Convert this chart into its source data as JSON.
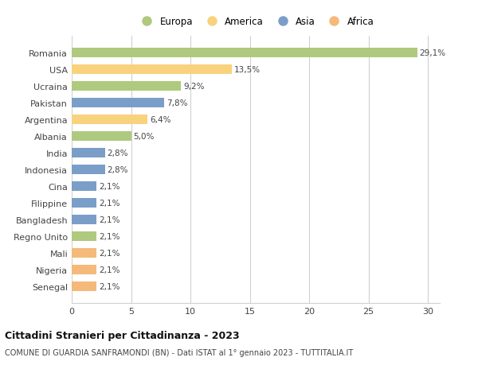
{
  "categories": [
    "Romania",
    "USA",
    "Ucraina",
    "Pakistan",
    "Argentina",
    "Albania",
    "India",
    "Indonesia",
    "Cina",
    "Filippine",
    "Bangladesh",
    "Regno Unito",
    "Mali",
    "Nigeria",
    "Senegal"
  ],
  "values": [
    29.1,
    13.5,
    9.2,
    7.8,
    6.4,
    5.0,
    2.8,
    2.8,
    2.1,
    2.1,
    2.1,
    2.1,
    2.1,
    2.1,
    2.1
  ],
  "labels": [
    "29,1%",
    "13,5%",
    "9,2%",
    "7,8%",
    "6,4%",
    "5,0%",
    "2,8%",
    "2,8%",
    "2,1%",
    "2,1%",
    "2,1%",
    "2,1%",
    "2,1%",
    "2,1%",
    "2,1%"
  ],
  "colors": [
    "#afc97e",
    "#f9d27d",
    "#afc97e",
    "#7b9ec9",
    "#f9d27d",
    "#afc97e",
    "#7b9ec9",
    "#7b9ec9",
    "#7b9ec9",
    "#7b9ec9",
    "#7b9ec9",
    "#afc97e",
    "#f5b97a",
    "#f5b97a",
    "#f5b97a"
  ],
  "legend_labels": [
    "Europa",
    "America",
    "Asia",
    "Africa"
  ],
  "legend_colors": [
    "#afc97e",
    "#f9d27d",
    "#7b9ec9",
    "#f5b97a"
  ],
  "title": "Cittadini Stranieri per Cittadinanza - 2023",
  "subtitle": "COMUNE DI GUARDIA SANFRAMONDI (BN) - Dati ISTAT al 1° gennaio 2023 - TUTTITALIA.IT",
  "xlim": [
    0,
    31
  ],
  "xticks": [
    0,
    5,
    10,
    15,
    20,
    25,
    30
  ],
  "bg_color": "#ffffff",
  "grid_color": "#d0d0d0",
  "bar_height": 0.55
}
